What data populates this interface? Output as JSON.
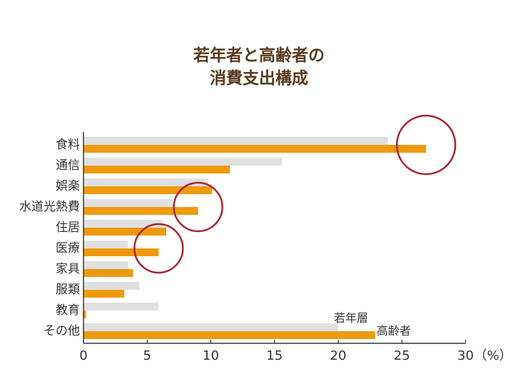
{
  "chart_data": {
    "type": "bar",
    "title_lines": [
      "若年者と高齢者の",
      "消費支出構成"
    ],
    "categories": [
      "食料",
      "通信",
      "娯楽",
      "水道光熱費",
      "住居",
      "医療",
      "家具",
      "服類",
      "教育",
      "その他"
    ],
    "series": [
      {
        "name": "若年層",
        "values": [
          23.9,
          15.6,
          9.8,
          7.0,
          6.2,
          3.5,
          3.5,
          4.4,
          5.9,
          20.0
        ]
      },
      {
        "name": "高齢者",
        "values": [
          26.9,
          11.5,
          10.1,
          9.0,
          6.5,
          5.9,
          3.9,
          3.2,
          0.2,
          22.9
        ]
      }
    ],
    "x_ticks": [
      0,
      5,
      10,
      15,
      20,
      25,
      30
    ],
    "xlim": [
      0,
      30
    ],
    "x_unit": "（%）",
    "orientation": "horizontal",
    "highlight_circles": [
      "食料",
      "水道光熱費",
      "医療"
    ],
    "colors": {
      "series1": "#e0e0e0",
      "series2": "#ee9a0e",
      "circle": "#a8262f",
      "title": "#5a3a1e",
      "axis": "#333333",
      "text": "#333333"
    }
  }
}
